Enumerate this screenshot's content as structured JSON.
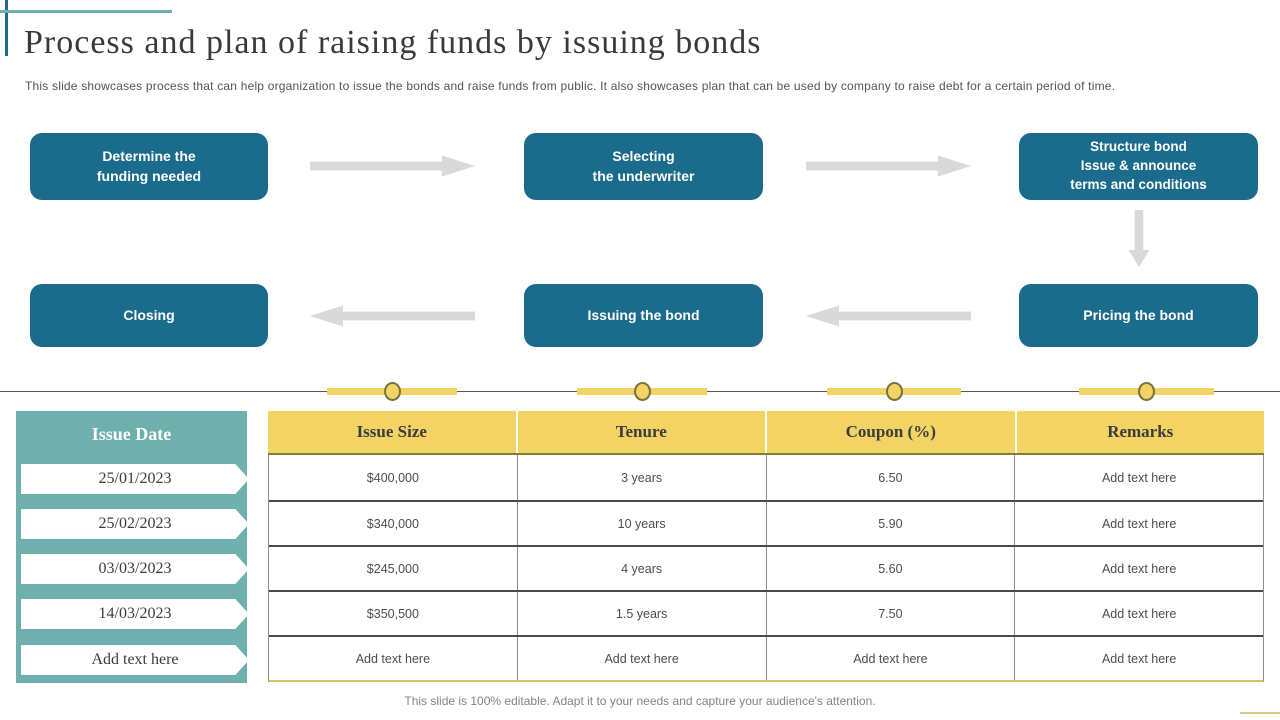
{
  "colors": {
    "teal_dark": "#1b6b8d",
    "teal_light": "#6fafac",
    "yellow": "#f2d364",
    "arrow_gray": "#d9d9d9",
    "line_gray": "#595959"
  },
  "header": {
    "title": "Process and plan of raising funds by issuing bonds",
    "subtitle": "This slide showcases process that can help organization to issue the bonds and raise funds from public. It also showcases plan that can be used by company to raise debt for a certain period of time."
  },
  "process": {
    "steps": [
      {
        "label": "Determine the\nfunding needed"
      },
      {
        "label": "Selecting\nthe underwriter"
      },
      {
        "label": "Structure bond\nIssue & announce\nterms and conditions"
      },
      {
        "label": "Pricing the bond"
      },
      {
        "label": "Issuing the bond"
      },
      {
        "label": "Closing"
      }
    ]
  },
  "issue_dates": {
    "header": "Issue Date",
    "items": [
      "25/01/2023",
      "25/02/2023",
      "03/03/2023",
      "14/03/2023",
      "Add text here"
    ]
  },
  "bond_table": {
    "columns": [
      "Issue Size",
      "Tenure",
      "Coupon (%)",
      "Remarks"
    ],
    "rows": [
      [
        "$400,000",
        "3 years",
        "6.50",
        "Add text here"
      ],
      [
        "$340,000",
        "10 years",
        "5.90",
        "Add text here"
      ],
      [
        "$245,000",
        "4 years",
        "5.60",
        "Add text here"
      ],
      [
        "$350,500",
        "1.5 years",
        "7.50",
        "Add text here"
      ],
      [
        "Add text here",
        "Add text here",
        "Add text here",
        "Add text here"
      ]
    ]
  },
  "footer": {
    "note": "This slide is 100% editable. Adapt it to your needs and capture your audience's attention."
  }
}
